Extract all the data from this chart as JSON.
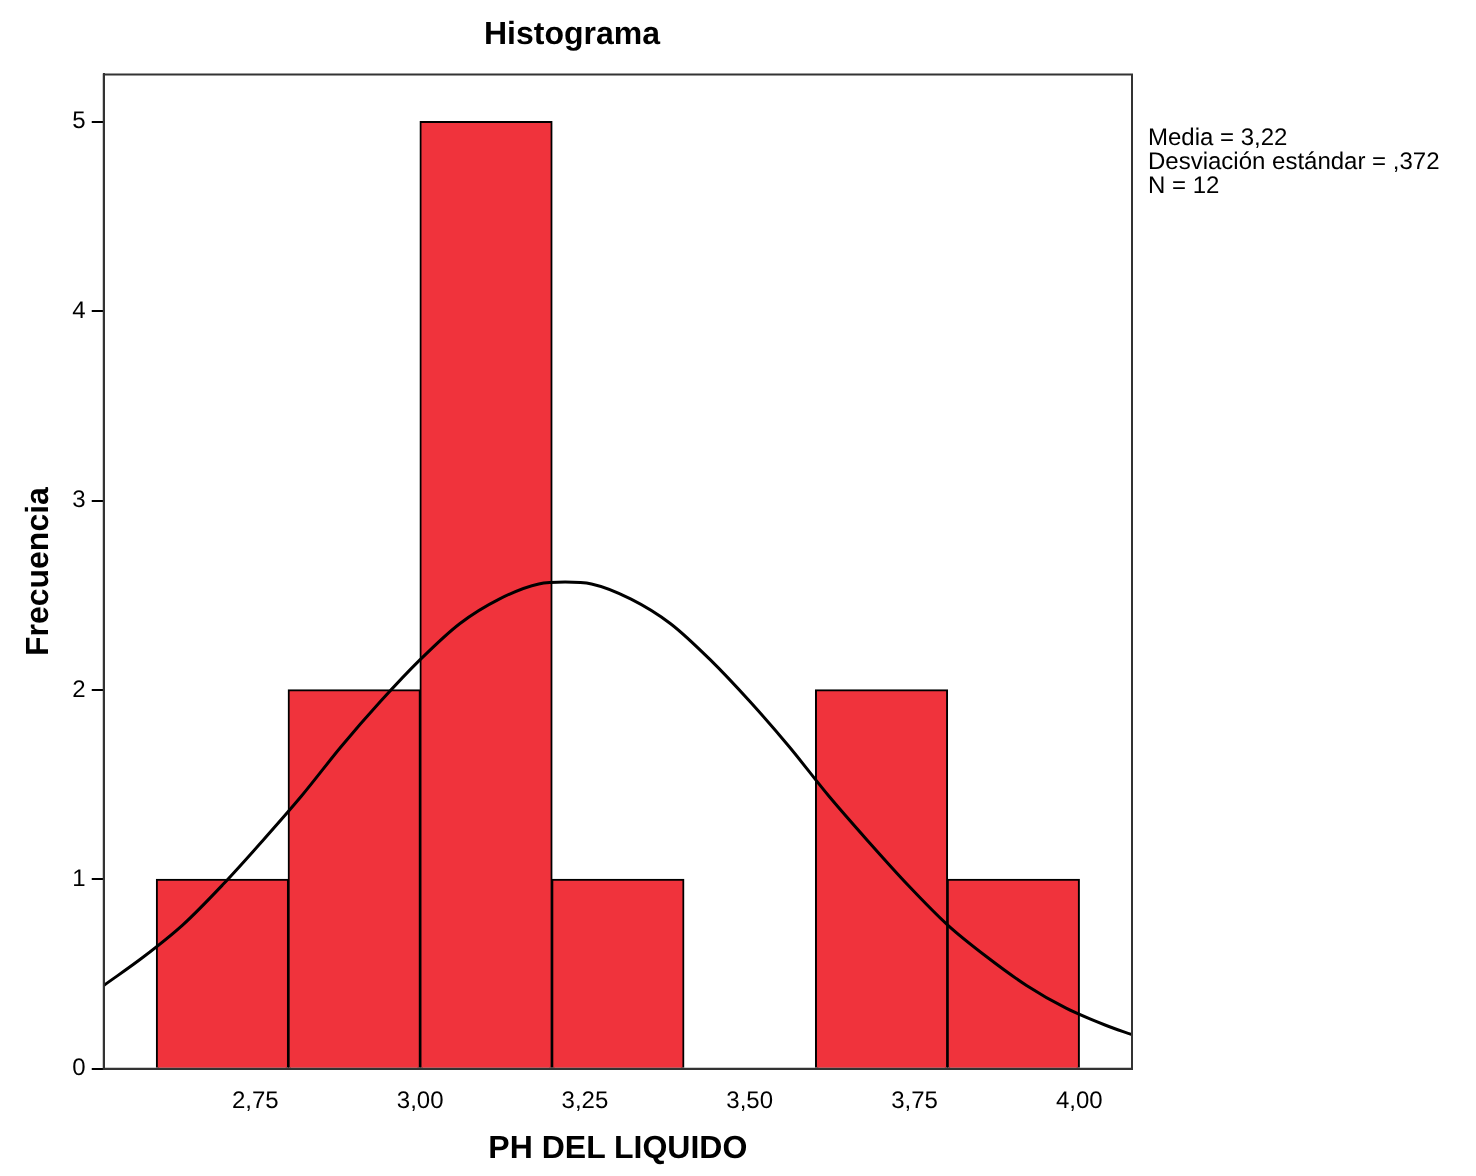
{
  "chart_data": {
    "type": "histogram",
    "title": "Histograma",
    "xlabel": "PH DEL LIQUIDO",
    "ylabel": "Frecuencia",
    "bins": [
      2.6,
      2.8,
      3.0,
      3.2,
      3.4,
      3.6,
      3.8,
      4.0
    ],
    "values": [
      1,
      2,
      5,
      1,
      0,
      2,
      1
    ],
    "color": "#f0333c",
    "series": [
      {
        "type": "line",
        "color": "#000000",
        "x": [
          2.52,
          2.58,
          2.64,
          2.7,
          2.76,
          2.82,
          2.88,
          2.94,
          3.0,
          3.06,
          3.12,
          3.18,
          3.22,
          3.26,
          3.32,
          3.38,
          3.44,
          3.5,
          3.56,
          3.62,
          3.68,
          3.74,
          3.8,
          3.86,
          3.92,
          3.98,
          4.04,
          4.08
        ],
        "values": [
          0.44,
          0.59,
          0.76,
          0.97,
          1.2,
          1.44,
          1.7,
          1.94,
          2.16,
          2.35,
          2.48,
          2.56,
          2.57,
          2.56,
          2.48,
          2.35,
          2.16,
          1.94,
          1.7,
          1.44,
          1.2,
          0.97,
          0.76,
          0.59,
          0.44,
          0.32,
          0.23,
          0.18
        ]
      }
    ],
    "xlim": [
      2.52,
      4.08
    ],
    "xticks": [
      {
        "value": 2.75,
        "label": "2,75"
      },
      {
        "value": 3.0,
        "label": "3,00"
      },
      {
        "value": 3.25,
        "label": "3,25"
      },
      {
        "value": 3.5,
        "label": "3,50"
      },
      {
        "value": 3.75,
        "label": "3,75"
      },
      {
        "value": 4.0,
        "label": "4,00"
      }
    ],
    "ylim": [
      0,
      5.25
    ],
    "yticks": [
      0,
      1,
      2,
      3,
      4,
      5
    ],
    "grid": false,
    "legend": false,
    "marker": "none",
    "annotations": [
      "Media = 3,22",
      "Desviación estándar = ,372",
      "N = 12"
    ]
  }
}
